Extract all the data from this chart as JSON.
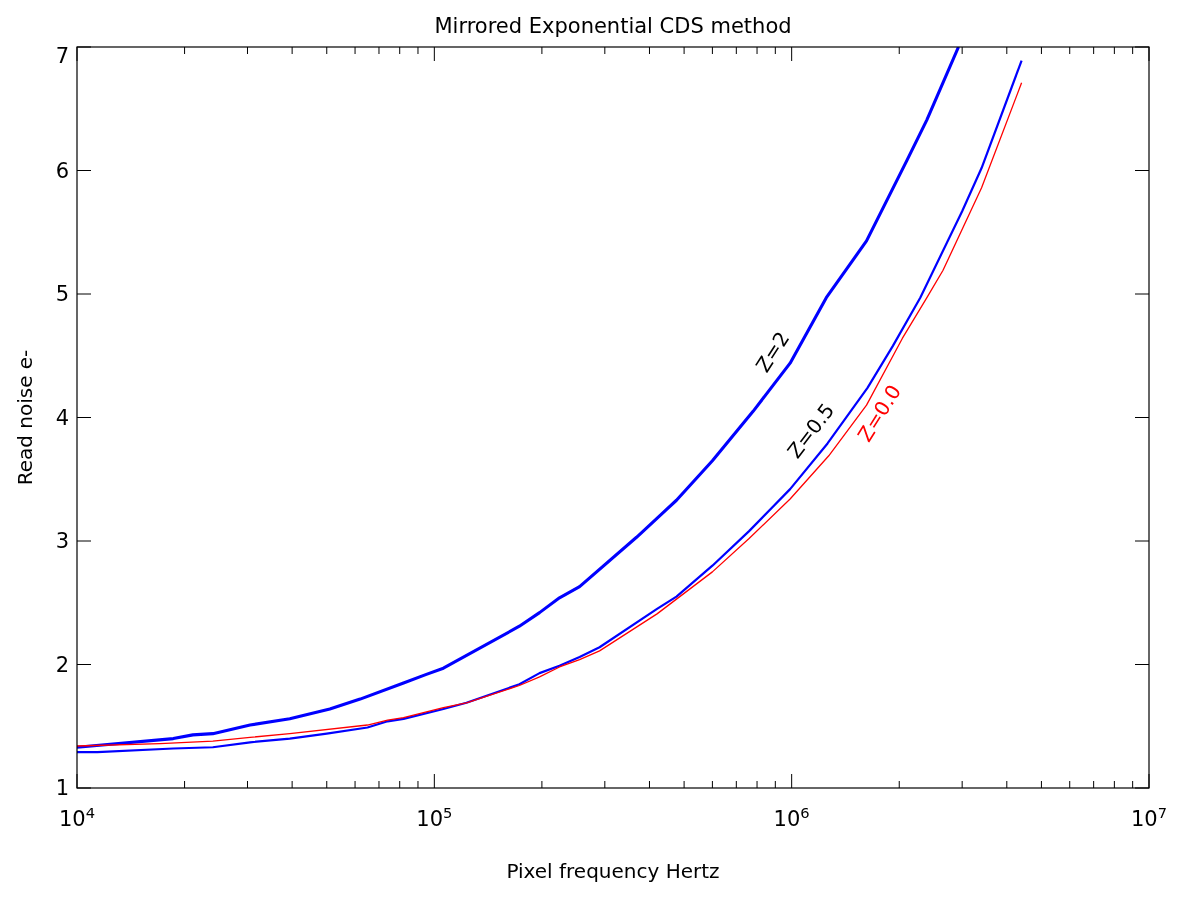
{
  "chart_data": {
    "type": "line",
    "title": "Mirrored Exponential CDS method",
    "xlabel": "Pixel frequency Hertz",
    "ylabel": "Read noise e-",
    "log": "x",
    "xlim": [
      10000,
      10000000
    ],
    "ylim": [
      1,
      7
    ],
    "xticks": [
      {
        "value": 10000,
        "label": "10$^{4}$"
      },
      {
        "value": 20000,
        "label": null
      },
      {
        "value": 30000,
        "label": null
      },
      {
        "value": 40000,
        "label": null
      },
      {
        "value": 50000,
        "label": null
      },
      {
        "value": 60000,
        "label": null
      },
      {
        "value": 70000,
        "label": null
      },
      {
        "value": 80000,
        "label": null
      },
      {
        "value": 90000,
        "label": null
      },
      {
        "value": 100000,
        "label": "10$^{5}$"
      },
      {
        "value": 200000,
        "label": null
      },
      {
        "value": 300000,
        "label": null
      },
      {
        "value": 400000,
        "label": null
      },
      {
        "value": 500000,
        "label": null
      },
      {
        "value": 600000,
        "label": null
      },
      {
        "value": 700000,
        "label": null
      },
      {
        "value": 800000,
        "label": null
      },
      {
        "value": 900000,
        "label": null
      },
      {
        "value": 1000000,
        "label": "10$^{6}$"
      },
      {
        "value": 2000000,
        "label": null
      },
      {
        "value": 3000000,
        "label": null
      },
      {
        "value": 4000000,
        "label": null
      },
      {
        "value": 5000000,
        "label": null
      },
      {
        "value": 6000000,
        "label": null
      },
      {
        "value": 7000000,
        "label": null
      },
      {
        "value": 8000000,
        "label": null
      },
      {
        "value": 9000000,
        "label": null
      },
      {
        "value": 10000000,
        "label": "10$^{7}$"
      }
    ],
    "yticks": [
      1,
      2,
      3,
      4,
      5,
      6,
      7
    ],
    "grid": false,
    "marker": "none",
    "line_style": "solid",
    "series": [
      {
        "name": "Z=2",
        "color": "#0000ff",
        "x": [
          10000,
          18600,
          21100,
          24000,
          30500,
          39400,
          51000,
          62000,
          82000,
          95000,
          106000,
          173000,
          197000,
          224000,
          255000,
          368000,
          476000,
          600000,
          780000,
          990000,
          1250000,
          1620000,
          2100000,
          2390000,
          2930000
        ],
        "values": [
          1.33,
          1.4,
          1.43,
          1.44,
          1.51,
          1.56,
          1.64,
          1.72,
          1.85,
          1.92,
          1.97,
          2.31,
          2.42,
          2.54,
          2.63,
          3.03,
          3.33,
          3.65,
          4.05,
          4.44,
          4.97,
          5.43,
          6.08,
          6.41,
          7.0
        ]
      },
      {
        "name": "Z=0.5",
        "color": "#0000ff",
        "x": [
          10000,
          11400,
          18600,
          24000,
          30500,
          39400,
          50000,
          65000,
          74000,
          82000,
          106000,
          123000,
          173000,
          197000,
          224000,
          255000,
          290000,
          420000,
          476000,
          600000,
          760000,
          990000,
          1260000,
          1630000,
          1920000,
          2290000,
          3000000,
          3400000,
          4400000
        ],
        "values": [
          1.29,
          1.29,
          1.32,
          1.33,
          1.37,
          1.4,
          1.44,
          1.49,
          1.54,
          1.56,
          1.64,
          1.69,
          1.84,
          1.93,
          1.99,
          2.06,
          2.14,
          2.45,
          2.55,
          2.8,
          3.08,
          3.42,
          3.79,
          4.24,
          4.58,
          4.97,
          5.67,
          6.02,
          6.89
        ]
      },
      {
        "name": "Z=0.0",
        "color": "#ff0000",
        "x": [
          10000,
          17100,
          24000,
          30500,
          39400,
          65000,
          74000,
          82000,
          106000,
          123000,
          173000,
          197000,
          224000,
          255000,
          290000,
          420000,
          600000,
          760000,
          990000,
          1270000,
          1620000,
          2040000,
          2390000,
          2650000,
          3400000,
          4400000
        ],
        "values": [
          1.34,
          1.36,
          1.38,
          1.41,
          1.44,
          1.51,
          1.55,
          1.57,
          1.65,
          1.69,
          1.83,
          1.9,
          1.98,
          2.04,
          2.11,
          2.41,
          2.75,
          3.02,
          3.34,
          3.69,
          4.1,
          4.64,
          4.97,
          5.19,
          5.86,
          6.71
        ]
      }
    ]
  }
}
